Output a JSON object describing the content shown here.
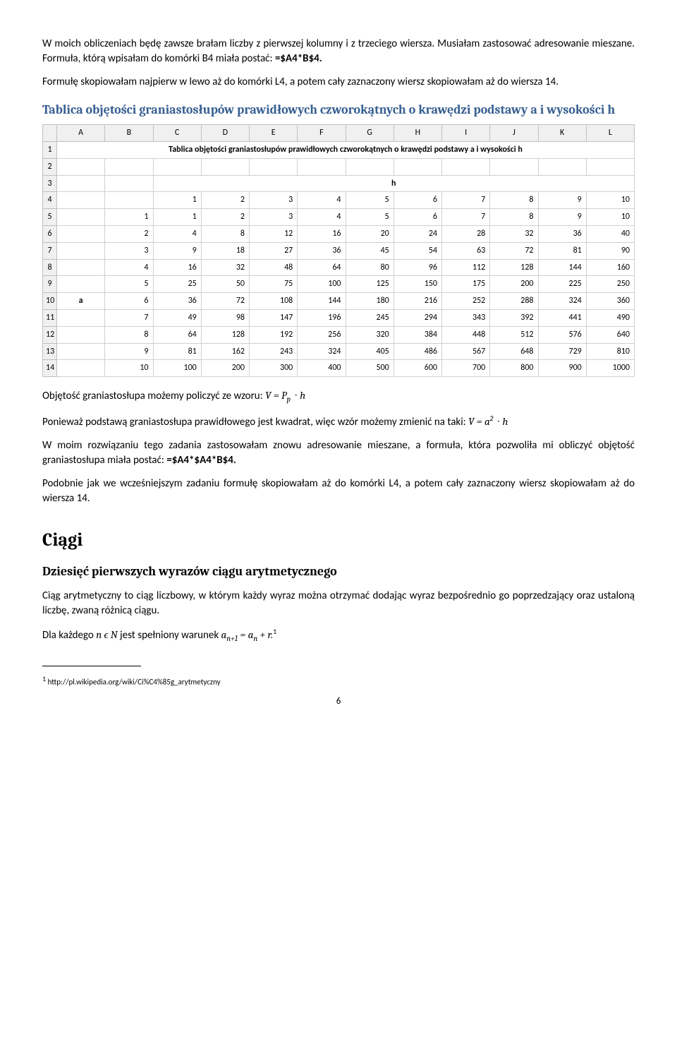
{
  "p1": "W moich obliczeniach będę zawsze brałam liczby z pierwszej kolumny i z trzeciego wiersza. Musiałam zastosować adresowanie mieszane. Formuła, którą wpisałam do komórki B4 miała postać: ",
  "p1_formula": "=$A4*B$4.",
  "p2": "Formułę skopiowałam najpierw w lewo aż do komórki L4, a potem cały zaznaczony wiersz skopiowałam aż do wiersza 14.",
  "heading1": "Tablica objętości graniastosłupów prawidłowych czworokątnych o krawędzi podstawy a i wysokości h",
  "sheet": {
    "columns": [
      "A",
      "B",
      "C",
      "D",
      "E",
      "F",
      "G",
      "H",
      "I",
      "J",
      "K",
      "L"
    ],
    "title": "Tablica objętości graniastosłupów prawidłowych czworokątnych o krawędzi podstawy a i wysokości h",
    "h_label": "h",
    "a_label": "a",
    "h_values": [
      1,
      2,
      3,
      4,
      5,
      6,
      7,
      8,
      9,
      10
    ],
    "rows": [
      {
        "a": 1,
        "v": [
          1,
          2,
          3,
          4,
          5,
          6,
          7,
          8,
          9,
          10
        ]
      },
      {
        "a": 2,
        "v": [
          4,
          8,
          12,
          16,
          20,
          24,
          28,
          32,
          36,
          40
        ]
      },
      {
        "a": 3,
        "v": [
          9,
          18,
          27,
          36,
          45,
          54,
          63,
          72,
          81,
          90
        ]
      },
      {
        "a": 4,
        "v": [
          16,
          32,
          48,
          64,
          80,
          96,
          112,
          128,
          144,
          160
        ]
      },
      {
        "a": 5,
        "v": [
          25,
          50,
          75,
          100,
          125,
          150,
          175,
          200,
          225,
          250
        ]
      },
      {
        "a": 6,
        "v": [
          36,
          72,
          108,
          144,
          180,
          216,
          252,
          288,
          324,
          360
        ]
      },
      {
        "a": 7,
        "v": [
          49,
          98,
          147,
          196,
          245,
          294,
          343,
          392,
          441,
          490
        ]
      },
      {
        "a": 8,
        "v": [
          64,
          128,
          192,
          256,
          320,
          384,
          448,
          512,
          576,
          640
        ]
      },
      {
        "a": 9,
        "v": [
          81,
          162,
          243,
          324,
          405,
          486,
          567,
          648,
          729,
          810
        ]
      },
      {
        "a": 10,
        "v": [
          100,
          200,
          300,
          400,
          500,
          600,
          700,
          800,
          900,
          1000
        ]
      }
    ]
  },
  "p3": "Objętość graniastosłupa możemy policzyć  ze wzoru: ",
  "p4": "Ponieważ podstawą graniastosłupa prawidłowego jest kwadrat, więc wzór możemy zmienić na taki: ",
  "p5a": "W moim rozwiązaniu tego zadania zastosowałam znowu adresowanie mieszane, a formuła, która pozwoliła mi obliczyć objętość graniastosłupa miała postać: ",
  "p5_formula": "=$A4*$A4*B$4.",
  "p6": "Podobnie jak we wcześniejszym zadaniu formułę skopiowałam aż do komórki L4, a potem cały zaznaczony wiersz skopiowałam aż do wiersza 14.",
  "h2": "Ciągi",
  "h3": "Dziesięć pierwszych wyrazów ciągu arytmetycznego",
  "p7": "Ciąg arytmetyczny to ciąg liczbowy, w którym każdy wyraz można otrzymać dodając wyraz bezpośrednio go poprzedzający oraz ustaloną liczbę, zwaną różnicą ciągu.",
  "p8a": "Dla każdego ",
  "p8b": " jest spełniony warunek ",
  "footnote_url": "http://pl.wikipedia.org/wiki/Ci%C4%85g_arytmetyczny",
  "page_number": "6"
}
